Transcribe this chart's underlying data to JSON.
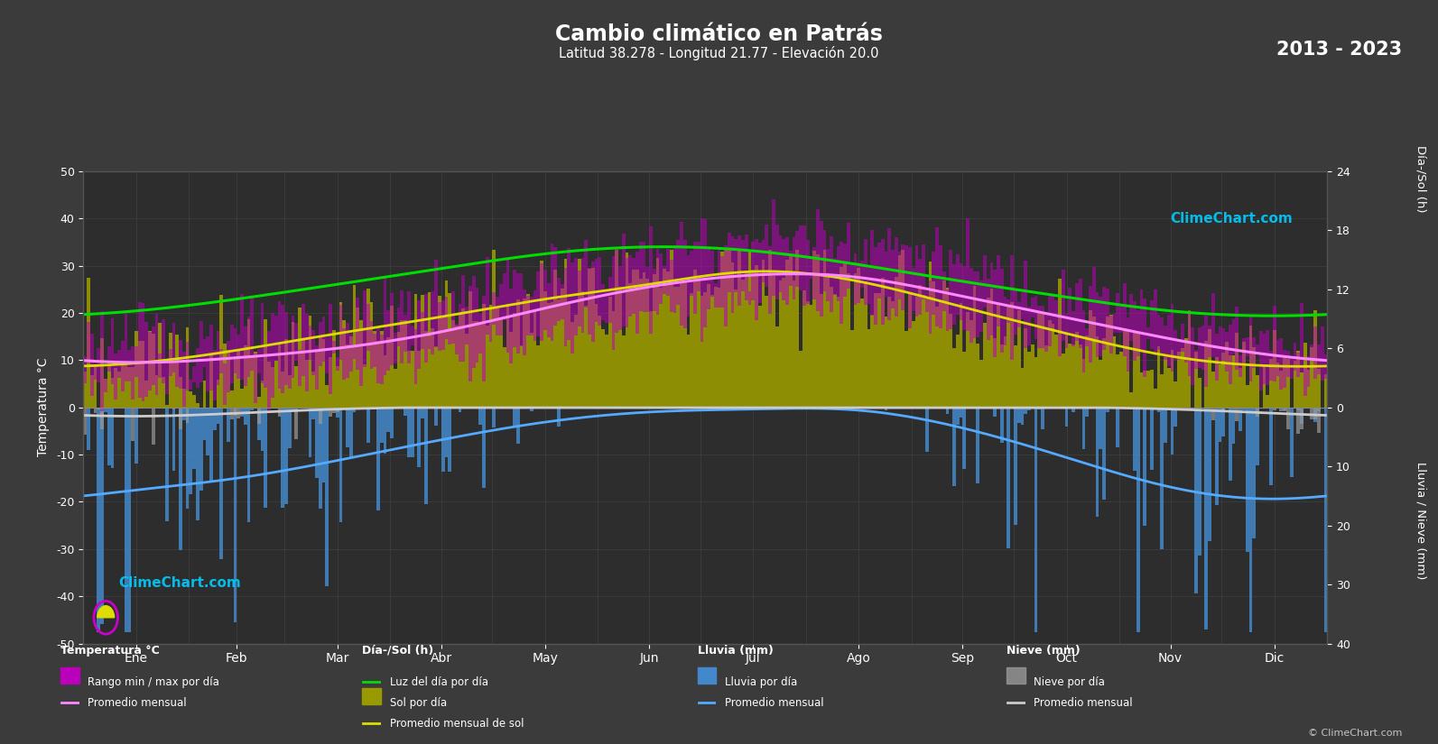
{
  "title": "Cambio climático en Patrás",
  "subtitle": "Latitud 38.278 - Longitud 21.77 - Elevación 20.0",
  "year_range": "2013 - 2023",
  "background_color": "#3b3b3b",
  "plot_bg_color": "#2d2d2d",
  "grid_color": "#555555",
  "text_color": "#ffffff",
  "months": [
    "Ene",
    "Feb",
    "Mar",
    "Abr",
    "May",
    "Jun",
    "Jul",
    "Ago",
    "Sep",
    "Oct",
    "Nov",
    "Dic"
  ],
  "temp_ylim": [
    -50,
    50
  ],
  "temp_yticks": [
    -50,
    -40,
    -30,
    -20,
    -10,
    0,
    10,
    20,
    30,
    40,
    50
  ],
  "sun_yticks_right": [
    0,
    6,
    12,
    18,
    24
  ],
  "rain_yticks_right": [
    0,
    10,
    20,
    30,
    40
  ],
  "temp_avg_monthly": [
    9.5,
    10.5,
    12.5,
    16.0,
    21.0,
    25.5,
    28.0,
    27.5,
    23.5,
    19.0,
    14.5,
    11.0
  ],
  "temp_max_monthly": [
    14.5,
    15.5,
    18.0,
    22.5,
    28.0,
    33.0,
    36.0,
    35.5,
    30.0,
    24.5,
    19.5,
    15.5
  ],
  "temp_min_monthly": [
    4.5,
    5.0,
    7.0,
    10.5,
    14.5,
    19.0,
    22.0,
    21.5,
    17.0,
    13.5,
    9.5,
    6.0
  ],
  "daylight_monthly": [
    9.8,
    11.0,
    12.5,
    14.1,
    15.6,
    16.3,
    15.9,
    14.5,
    12.8,
    11.2,
    9.8,
    9.3
  ],
  "sunshine_monthly": [
    4.5,
    5.8,
    7.5,
    9.2,
    11.0,
    12.5,
    13.8,
    12.8,
    10.2,
    7.5,
    5.2,
    4.2
  ],
  "rainfall_monthly": [
    14.0,
    12.0,
    9.0,
    5.5,
    2.5,
    0.8,
    0.3,
    0.5,
    3.5,
    8.5,
    13.5,
    15.5
  ],
  "snow_monthly": [
    1.5,
    1.0,
    0.3,
    0.0,
    0.0,
    0.0,
    0.0,
    0.0,
    0.0,
    0.0,
    0.3,
    1.0
  ],
  "rain_avg_line_monthly": [
    14.0,
    12.0,
    9.0,
    5.5,
    2.5,
    0.8,
    0.3,
    0.5,
    3.5,
    8.5,
    13.5,
    15.5
  ],
  "snow_avg_line_monthly": [
    1.5,
    1.0,
    0.3,
    0.0,
    0.0,
    0.0,
    0.0,
    0.0,
    0.0,
    0.0,
    0.3,
    1.0
  ],
  "color_daylight": "#00dd00",
  "color_sunshine_bar": "#999900",
  "color_sunshine_avg": "#dddd00",
  "color_temp_band": "#bb00bb",
  "color_temp_avg": "#ff88ff",
  "color_rain_bar": "#4488cc",
  "color_rain_avg": "#55aaff",
  "color_snow_bar": "#999999",
  "color_snow_avg": "#cccccc"
}
